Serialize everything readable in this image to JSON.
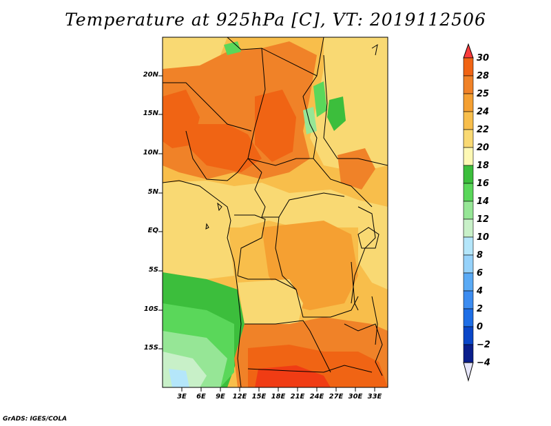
{
  "title": "Temperature at 925hPa [C], VT: 2019112506",
  "credit": "GrADS: IGES/COLA",
  "map": {
    "latitude_labels": [
      "20N",
      "15N",
      "10N",
      "5N",
      "EQ",
      "5S",
      "10S",
      "15S"
    ],
    "longitude_labels": [
      "3E",
      "6E",
      "9E",
      "12E",
      "15E",
      "18E",
      "21E",
      "24E",
      "27E",
      "30E",
      "33E"
    ]
  },
  "colorbar": {
    "labels": [
      "30",
      "28",
      "25",
      "24",
      "22",
      "20",
      "18",
      "16",
      "14",
      "12",
      "10",
      "8",
      "6",
      "4",
      "2",
      "0",
      "−2",
      "−4"
    ],
    "colors": [
      "#fa3c3c",
      "#f06414",
      "#f08228",
      "#f5a032",
      "#f8be4b",
      "#f9d973",
      "#fdf8b4",
      "#3cbe3c",
      "#5ad75a",
      "#96e696",
      "#c8f0c8",
      "#b4e6fa",
      "#96d2fa",
      "#5aaaf5",
      "#3c8cf0",
      "#1e6ee6",
      "#0a46c8",
      "#0a1e8c"
    ]
  },
  "legend_colors": {
    "deep_red": "#f03c14",
    "orange_red": "#f06414",
    "orange": "#f5a032",
    "light_orange": "#f8be4b",
    "yellow": "#f9d973",
    "pale_yellow": "#fdf8b4",
    "green": "#3cbe3c",
    "light_green": "#96e696",
    "pale_green": "#c8f0c8",
    "light_blue": "#b4e6fa"
  }
}
